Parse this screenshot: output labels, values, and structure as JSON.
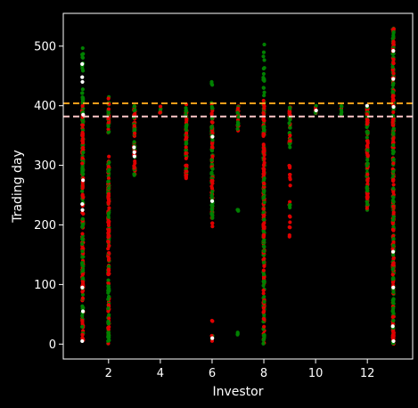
{
  "chart_data": {
    "type": "scatter",
    "title": "",
    "xlabel": "Investor",
    "ylabel": "Trading day",
    "xlim": [
      0.25,
      13.75
    ],
    "ylim": [
      -25,
      555
    ],
    "xticks": [
      2,
      4,
      6,
      8,
      10,
      12
    ],
    "yticks": [
      0,
      100,
      200,
      300,
      400,
      500
    ],
    "grid": false,
    "legend": "none",
    "background": "#000000",
    "axis_color": "#ffffff",
    "colors": {
      "green": "#008000",
      "red": "#e00000",
      "white": "#ffffff",
      "orange_line": "#ff9f1a",
      "pink_line": "#ffc8c8"
    },
    "hlines": [
      {
        "y": 404,
        "color": "#ff9f1a",
        "style": "dashed"
      },
      {
        "y": 382,
        "color": "#ffc8c8",
        "style": "dashed"
      }
    ],
    "columns": [
      {
        "x": 1,
        "ranges": [
          [
            5,
            415
          ]
        ],
        "sparse": [
          [
            420,
            510,
            "green"
          ]
        ],
        "whites": [
          5,
          55,
          95,
          225,
          235,
          275,
          385,
          440,
          448,
          470
        ]
      },
      {
        "x": 2,
        "ranges": [
          [
            0,
            315
          ],
          [
            355,
            415
          ]
        ],
        "sparse": [],
        "whites": []
      },
      {
        "x": 3,
        "ranges": [
          [
            278,
            400
          ]
        ],
        "sparse": [],
        "whites": [
          315,
          322,
          330
        ]
      },
      {
        "x": 4,
        "ranges": [
          [
            388,
            400
          ]
        ],
        "sparse": [],
        "whites": []
      },
      {
        "x": 5,
        "ranges": [
          [
            278,
            405
          ]
        ],
        "sparse": [],
        "whites": []
      },
      {
        "x": 6,
        "ranges": [
          [
            210,
            405
          ]
        ],
        "sparse": [
          [
            195,
            205,
            "red"
          ],
          [
            0,
            40,
            "mix"
          ],
          [
            430,
            440,
            "green"
          ]
        ],
        "whites": [
          10,
          240,
          348
        ]
      },
      {
        "x": 7,
        "ranges": [
          [
            355,
            400
          ]
        ],
        "sparse": [
          [
            222,
            226,
            "green"
          ],
          [
            15,
            22,
            "green"
          ]
        ],
        "whites": []
      },
      {
        "x": 8,
        "ranges": [
          [
            0,
            410
          ]
        ],
        "sparse": [
          [
            410,
            512,
            "green"
          ]
        ],
        "whites": []
      },
      {
        "x": 9,
        "ranges": [
          [
            330,
            400
          ]
        ],
        "sparse": [
          [
            180,
            300,
            "red"
          ],
          [
            228,
            235,
            "green"
          ]
        ],
        "whites": []
      },
      {
        "x": 10,
        "ranges": [
          [
            385,
            400
          ]
        ],
        "sparse": [],
        "whites": [
          392
        ]
      },
      {
        "x": 11,
        "ranges": [
          [
            385,
            400
          ]
        ],
        "sparse": [],
        "whites": []
      },
      {
        "x": 12,
        "ranges": [
          [
            225,
            402
          ]
        ],
        "sparse": [],
        "whites": [
          400
        ]
      },
      {
        "x": 13,
        "ranges": [
          [
            0,
            530
          ]
        ],
        "sparse": [],
        "whites": [
          5,
          30,
          95,
          155,
          398,
          445,
          492
        ]
      }
    ]
  }
}
